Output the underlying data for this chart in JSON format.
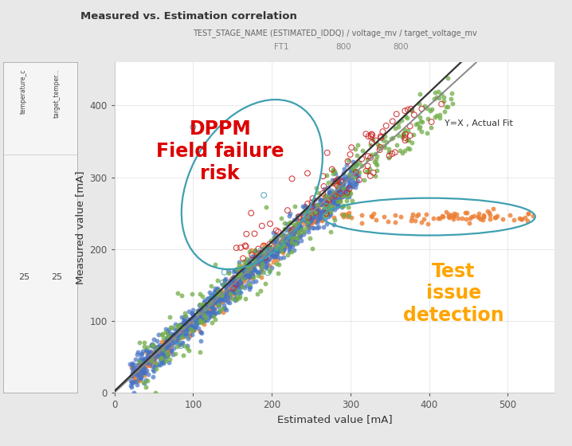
{
  "title": "Measured vs. Estimation correlation",
  "subtitle": "TEST_STAGE_NAME (ESTIMATED_IDDQ) / voltage_mv / target_voltage_mv",
  "legend_labels": [
    "FT1",
    "800",
    "800"
  ],
  "xlabel": "Estimated value [mA]",
  "ylabel": "Measured value [mA]",
  "xlim": [
    0,
    560
  ],
  "ylim": [
    0,
    460
  ],
  "xticks": [
    0,
    100,
    200,
    300,
    400,
    500
  ],
  "yticks": [
    0,
    100,
    200,
    300,
    400
  ],
  "left_col1": "temperature_c",
  "left_col2": "target_temper...",
  "left_val1": "25",
  "left_val2": "25",
  "fit_line_label": "Y=X , Actual Fit",
  "dppm_text": "DPPM\nField failure\nrisk",
  "test_issue_text": "Test\nissue\ndetection",
  "bg_color": "#e8e8e8",
  "plot_bg": "#ffffff",
  "seed": 7,
  "line1_color": "#888888",
  "line2_color": "#333333",
  "ellipse_color": "#3fa0b0",
  "dppm_color": "#dd0000",
  "test_color": "#FFA500"
}
